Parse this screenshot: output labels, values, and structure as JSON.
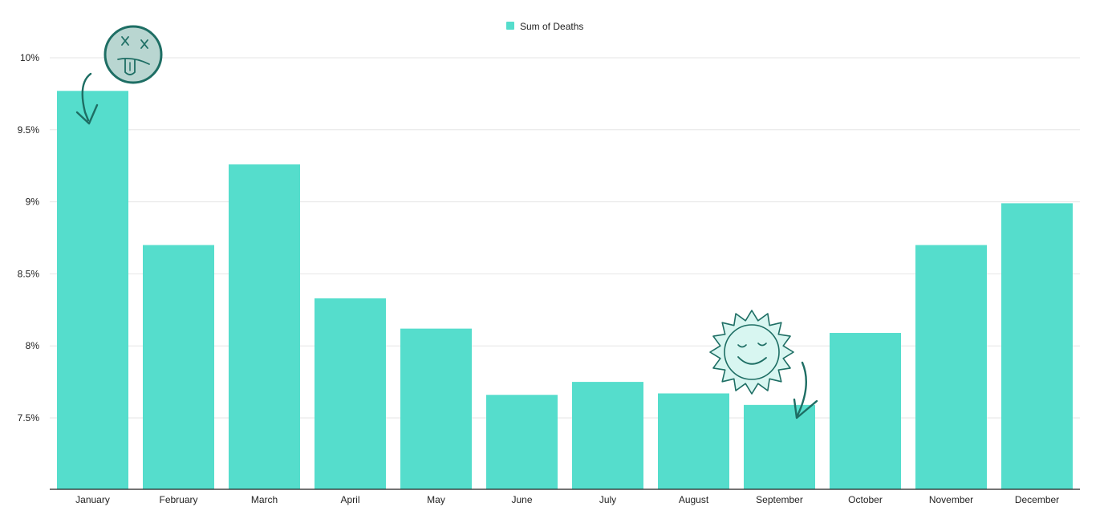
{
  "chart_data": {
    "type": "bar",
    "categories": [
      "January",
      "February",
      "March",
      "April",
      "May",
      "June",
      "July",
      "August",
      "September",
      "October",
      "November",
      "December"
    ],
    "series": [
      {
        "name": "Sum of Deaths",
        "values": [
          9.77,
          8.7,
          9.26,
          8.33,
          8.12,
          7.66,
          7.75,
          7.67,
          7.59,
          8.09,
          8.7,
          8.99
        ]
      }
    ],
    "yticks": [
      "7.5%",
      "8%",
      "8.5%",
      "9%",
      "9.5%",
      "10%"
    ],
    "ytick_values": [
      7.5,
      8.0,
      8.5,
      9.0,
      9.5,
      10.0
    ],
    "ylim": [
      7.0,
      10.2
    ],
    "y_unit": "%",
    "grid": true,
    "legend_position": "top-center",
    "colors": {
      "bar": "#55ddcc",
      "grid": "#e6e6e6",
      "axis": "#222222",
      "annotation": "#1e6e64",
      "dead_face_fill": "#b9d6d1",
      "sun_fill": "#d8f6f1"
    },
    "annotations": [
      {
        "icon": "dead-face-icon",
        "category": "January"
      },
      {
        "icon": "smiling-sun-icon",
        "category": "September"
      }
    ]
  }
}
